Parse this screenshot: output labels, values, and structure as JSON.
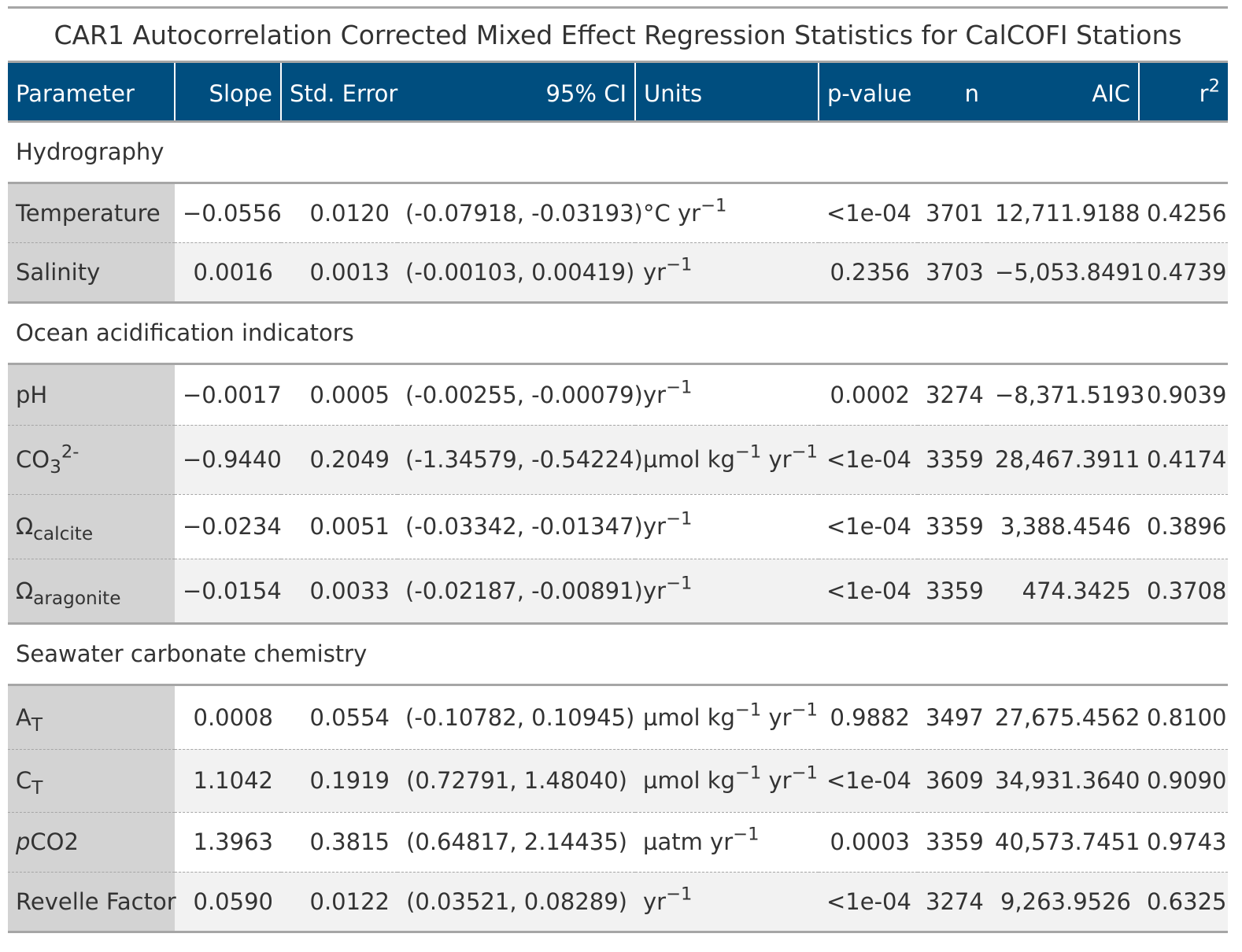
{
  "title": "CAR1 Autocorrelation Corrected Mixed Effect Regression Statistics for CalCOFI Stations",
  "columns": {
    "parameter": "Parameter",
    "slope": "Slope",
    "std_error": "Std. Error",
    "ci": "95% CI",
    "units": "Units",
    "p_value": "p-value",
    "n": "n",
    "aic": "AIC",
    "r2_base": "r",
    "r2_sup": "2"
  },
  "groups": [
    {
      "label": "Hydrography",
      "rows": [
        {
          "param_main": "Temperature",
          "param_sub": "",
          "param_sup": "",
          "param_italic": "",
          "slope": "−0.0556",
          "std_error": "0.0120",
          "ci": "(-0.07918, -0.03193)",
          "units_a": "°C yr",
          "units_a_sup": "−1",
          "units_b": "",
          "units_b_sup": "",
          "p_value": "<1e-04",
          "n": "3701",
          "aic": "12,711.9188",
          "r2": "0.4256"
        },
        {
          "param_main": "Salinity",
          "param_sub": "",
          "param_sup": "",
          "param_italic": "",
          "slope": "0.0016",
          "std_error": "0.0013",
          "ci": "(-0.00103, 0.00419)",
          "units_a": "yr",
          "units_a_sup": "−1",
          "units_b": "",
          "units_b_sup": "",
          "p_value": "0.2356",
          "n": "3703",
          "aic": "−5,053.8491",
          "r2": "0.4739"
        }
      ]
    },
    {
      "label": "Ocean acidification indicators",
      "rows": [
        {
          "param_main": "pH",
          "param_sub": "",
          "param_sup": "",
          "param_italic": "",
          "slope": "−0.0017",
          "std_error": "0.0005",
          "ci": "(-0.00255, -0.00079)",
          "units_a": "yr",
          "units_a_sup": "−1",
          "units_b": "",
          "units_b_sup": "",
          "p_value": "0.0002",
          "n": "3274",
          "aic": "−8,371.5193",
          "r2": "0.9039"
        },
        {
          "param_main": "CO",
          "param_sub": "3",
          "param_sup": "2-",
          "param_italic": "",
          "slope": "−0.9440",
          "std_error": "0.2049",
          "ci": "(-1.34579, -0.54224)",
          "units_a": "µmol kg",
          "units_a_sup": "−1",
          "units_b": " yr",
          "units_b_sup": "−1",
          "p_value": "<1e-04",
          "n": "3359",
          "aic": "28,467.3911",
          "r2": "0.4174"
        },
        {
          "param_main": "Ω",
          "param_sub": "calcite",
          "param_sup": "",
          "param_italic": "",
          "slope": "−0.0234",
          "std_error": "0.0051",
          "ci": "(-0.03342, -0.01347)",
          "units_a": "yr",
          "units_a_sup": "−1",
          "units_b": "",
          "units_b_sup": "",
          "p_value": "<1e-04",
          "n": "3359",
          "aic": "3,388.4546",
          "r2": "0.3896"
        },
        {
          "param_main": "Ω",
          "param_sub": "aragonite",
          "param_sup": "",
          "param_italic": "",
          "slope": "−0.0154",
          "std_error": "0.0033",
          "ci": "(-0.02187, -0.00891)",
          "units_a": "yr",
          "units_a_sup": "−1",
          "units_b": "",
          "units_b_sup": "",
          "p_value": "<1e-04",
          "n": "3359",
          "aic": "474.3425",
          "r2": "0.3708"
        }
      ]
    },
    {
      "label": "Seawater carbonate chemistry",
      "rows": [
        {
          "param_main": "A",
          "param_sub": "T",
          "param_sup": "",
          "param_italic": "",
          "slope": "0.0008",
          "std_error": "0.0554",
          "ci": "(-0.10782, 0.10945)",
          "units_a": "µmol kg",
          "units_a_sup": "−1",
          "units_b": " yr",
          "units_b_sup": "−1",
          "p_value": "0.9882",
          "n": "3497",
          "aic": "27,675.4562",
          "r2": "0.8100"
        },
        {
          "param_main": "C",
          "param_sub": "T",
          "param_sup": "",
          "param_italic": "",
          "slope": "1.1042",
          "std_error": "0.1919",
          "ci": "(0.72791, 1.48040)",
          "units_a": "µmol kg",
          "units_a_sup": "−1",
          "units_b": " yr",
          "units_b_sup": "−1",
          "p_value": "<1e-04",
          "n": "3609",
          "aic": "34,931.3640",
          "r2": "0.9090"
        },
        {
          "param_main": "CO2",
          "param_sub": "",
          "param_sup": "",
          "param_italic": "p",
          "slope": "1.3963",
          "std_error": "0.3815",
          "ci": "(0.64817, 2.14435)",
          "units_a": "µatm yr",
          "units_a_sup": "−1",
          "units_b": "",
          "units_b_sup": "",
          "p_value": "0.0003",
          "n": "3359",
          "aic": "40,573.7451",
          "r2": "0.9743"
        },
        {
          "param_main": "Revelle Factor",
          "param_sub": "",
          "param_sup": "",
          "param_italic": "",
          "slope": "0.0590",
          "std_error": "0.0122",
          "ci": "(0.03521, 0.08289)",
          "units_a": "yr",
          "units_a_sup": "−1",
          "units_b": "",
          "units_b_sup": "",
          "p_value": "<1e-04",
          "n": "3274",
          "aic": "9,263.9526",
          "r2": "0.6325"
        }
      ]
    }
  ]
}
